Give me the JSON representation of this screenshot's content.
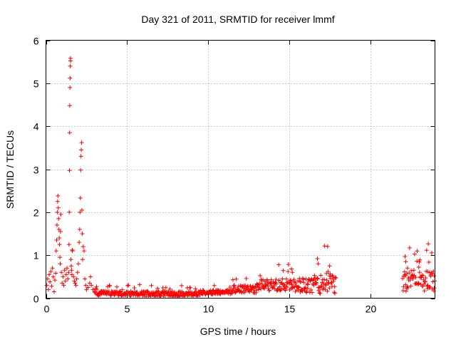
{
  "chart_data": {
    "type": "scatter",
    "title": "Day 321 of 2011, SRMTID for receiver lmmf",
    "xlabel": "GPS time / hours",
    "ylabel": "SRMTID / TECUs",
    "xlim": [
      0,
      24
    ],
    "ylim": [
      0,
      6
    ],
    "xticks": [
      0,
      5,
      10,
      15,
      20
    ],
    "yticks": [
      0,
      1,
      2,
      3,
      4,
      5,
      6
    ],
    "grid": true,
    "marker": "+",
    "color": "#ff0000",
    "series": [
      {
        "name": "SRMTID",
        "points": [
          [
            0.05,
            0.3
          ],
          [
            0.1,
            0.45
          ],
          [
            0.15,
            0.2
          ],
          [
            0.2,
            0.55
          ],
          [
            0.25,
            0.38
          ],
          [
            0.3,
            0.62
          ],
          [
            0.35,
            0.28
          ],
          [
            0.4,
            0.7
          ],
          [
            0.45,
            0.5
          ],
          [
            0.5,
            0.15
          ],
          [
            0.55,
            0.42
          ],
          [
            0.6,
            0.58
          ],
          [
            0.63,
            1.1
          ],
          [
            0.66,
            1.35
          ],
          [
            0.68,
            1.7
          ],
          [
            0.7,
            2.0
          ],
          [
            0.72,
            2.25
          ],
          [
            0.74,
            2.38
          ],
          [
            0.76,
            2.1
          ],
          [
            0.78,
            1.85
          ],
          [
            0.8,
            1.6
          ],
          [
            0.82,
            1.4
          ],
          [
            0.84,
            1.25
          ],
          [
            0.86,
            0.95
          ],
          [
            0.88,
            0.8
          ],
          [
            0.9,
            1.55
          ],
          [
            0.92,
            1.95
          ],
          [
            0.95,
            0.6
          ],
          [
            1.0,
            0.35
          ],
          [
            1.05,
            0.5
          ],
          [
            1.1,
            0.3
          ],
          [
            1.15,
            0.65
          ],
          [
            1.2,
            0.4
          ],
          [
            1.25,
            0.55
          ],
          [
            1.3,
            0.7
          ],
          [
            1.35,
            0.45
          ],
          [
            1.4,
            0.6
          ],
          [
            1.42,
            1.25
          ],
          [
            1.44,
            2.0
          ],
          [
            1.45,
            2.97
          ],
          [
            1.46,
            3.85
          ],
          [
            1.47,
            4.48
          ],
          [
            1.48,
            4.9
          ],
          [
            1.49,
            5.12
          ],
          [
            1.5,
            5.4
          ],
          [
            1.51,
            5.58
          ],
          [
            1.52,
            5.52
          ],
          [
            1.54,
            0.9
          ],
          [
            1.56,
            0.75
          ],
          [
            1.58,
            0.65
          ],
          [
            1.6,
            0.55
          ],
          [
            1.62,
            1.12
          ],
          [
            1.64,
            1.1
          ],
          [
            1.7,
            0.5
          ],
          [
            1.75,
            0.4
          ],
          [
            1.8,
            0.35
          ],
          [
            1.85,
            0.3
          ],
          [
            1.9,
            0.45
          ],
          [
            1.95,
            0.6
          ],
          [
            2.0,
            0.8
          ],
          [
            2.05,
            1.3
          ],
          [
            2.08,
            1.6
          ],
          [
            2.1,
            2.0
          ],
          [
            2.12,
            2.33
          ],
          [
            2.14,
            2.98
          ],
          [
            2.16,
            3.3
          ],
          [
            2.18,
            3.45
          ],
          [
            2.2,
            3.62
          ],
          [
            2.22,
            2.05
          ],
          [
            2.24,
            1.5
          ],
          [
            2.26,
            0.9
          ],
          [
            2.3,
            1.2
          ],
          [
            2.35,
            1.1
          ],
          [
            2.4,
            0.45
          ],
          [
            2.45,
            0.3
          ],
          [
            2.5,
            0.2
          ],
          [
            2.6,
            0.25
          ],
          [
            2.7,
            0.35
          ],
          [
            2.75,
            0.5
          ],
          [
            2.8,
            0.3
          ],
          [
            2.9,
            0.2
          ],
          [
            3.0,
            0.15
          ]
        ]
      }
    ]
  }
}
